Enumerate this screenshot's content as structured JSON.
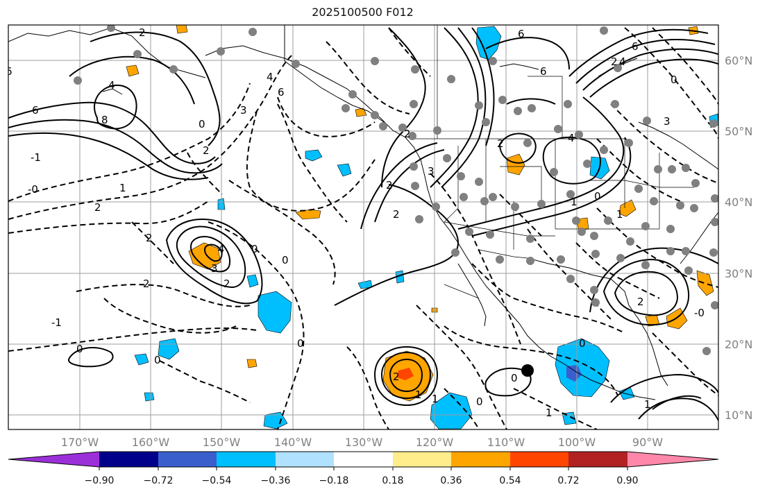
{
  "title": "2025100500 F012",
  "lat_labels": [
    "60°N",
    "50°N",
    "40°N",
    "30°N",
    "20°N",
    "10°N"
  ],
  "lon_labels": [
    "170°W",
    "160°W",
    "150°W",
    "140°W",
    "130°W",
    "120°W",
    "110°W",
    "100°W",
    "90°W"
  ],
  "colorbar": {
    "tick_labels": [
      "−0.90",
      "−0.72",
      "−0.54",
      "−0.36",
      "−0.18",
      "0.18",
      "0.36",
      "0.54",
      "0.72",
      "0.90"
    ],
    "colors": [
      "#9b30d9",
      "#00008b",
      "#3a5fcd",
      "#00bfff",
      "#b0e2ff",
      "#ffffff",
      "#ffec8b",
      "#ffa500",
      "#ff4500",
      "#b22222",
      "#ff88aa"
    ]
  },
  "contour_labels": {
    "l1": "6",
    "l2": "4",
    "l3": "8",
    "l4": "-1",
    "l5": "-0",
    "l6": "1",
    "l7": "2",
    "l8": "2",
    "l9": "0",
    "l10": "2",
    "l11": "4",
    "l12": "3",
    "l13": "2",
    "l14": "0",
    "l15": "-1",
    "l16": "0",
    "l17": "0",
    "l18": "0",
    "l19": "6",
    "l20": "4",
    "l21": "3",
    "l22": "2",
    "l23": "6",
    "l24": "6",
    "l25": "6",
    "l26": "3",
    "l27": "2",
    "l28": "4",
    "l29": "2",
    "l30": "2",
    "l31": "1",
    "l32": "4",
    "l33": "0",
    "l34": "3",
    "l35": "0",
    "l36": "0",
    "l37": "2",
    "l38": "0",
    "l39": "-0",
    "l40": "1",
    "l41": "0",
    "l42": "1",
    "l43": "1",
    "l44": "2",
    "l45": "2",
    "l46": "2",
    "l47": "2",
    "l48": "1",
    "l49": "0",
    "l50": "6",
    "l51": "1"
  }
}
